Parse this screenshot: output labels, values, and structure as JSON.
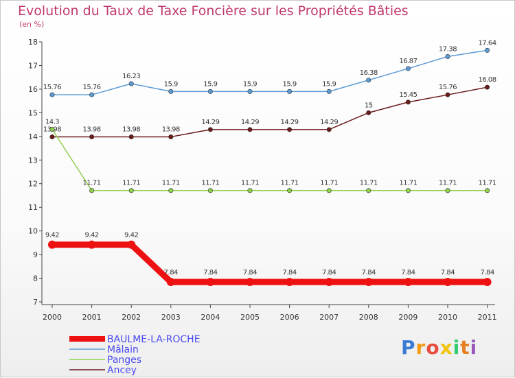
{
  "chart_data": {
    "type": "line",
    "title": "Evolution du Taux de Taxe Foncière sur les Propriétés Bâties",
    "ylabel": "(en %)",
    "xlabel": "",
    "ylim": [
      7,
      18
    ],
    "yticks": [
      7,
      8,
      9,
      10,
      11,
      12,
      13,
      14,
      15,
      16,
      17,
      18
    ],
    "categories": [
      "2000",
      "2001",
      "2002",
      "2003",
      "2004",
      "2005",
      "2006",
      "2007",
      "2008",
      "2009",
      "2010",
      "2011"
    ],
    "series": [
      {
        "name": "Mâlain",
        "color": "#5b9bd5",
        "emphasis": false,
        "values": [
          15.76,
          15.76,
          16.23,
          15.9,
          15.9,
          15.9,
          15.9,
          15.9,
          16.38,
          16.87,
          17.38,
          17.64
        ],
        "labels": [
          "15.76",
          "15.76",
          "16.23",
          "15.9",
          "15.9",
          "15.9",
          "15.9",
          "15.9",
          "16.38",
          "16.87",
          "17.38",
          "17.64"
        ]
      },
      {
        "name": "Ancey",
        "color": "#6b1a1a",
        "emphasis": false,
        "values": [
          13.98,
          13.98,
          13.98,
          13.98,
          14.29,
          14.29,
          14.29,
          14.29,
          15,
          15.45,
          15.76,
          16.08
        ],
        "labels": [
          "13.98",
          "13.98",
          "13.98",
          "13.98",
          "14.29",
          "14.29",
          "14.29",
          "14.29",
          "15",
          "15.45",
          "15.76",
          "16.08"
        ]
      },
      {
        "name": "Panges",
        "color": "#8fd14f",
        "emphasis": false,
        "values": [
          14.3,
          11.71,
          11.71,
          11.71,
          11.71,
          11.71,
          11.71,
          11.71,
          11.71,
          11.71,
          11.71,
          11.71
        ],
        "labels": [
          "14.3",
          "11.71",
          "11.71",
          "11.71",
          "11.71",
          "11.71",
          "11.71",
          "11.71",
          "11.71",
          "11.71",
          "11.71",
          "11.71"
        ]
      },
      {
        "name": "BAULME-LA-ROCHE",
        "color": "#ee1111",
        "emphasis": true,
        "values": [
          9.42,
          9.42,
          9.42,
          7.84,
          7.84,
          7.84,
          7.84,
          7.84,
          7.84,
          7.84,
          7.84,
          7.84
        ],
        "labels": [
          "9.42",
          "9.42",
          "9.42",
          "7.84",
          "7.84",
          "7.84",
          "7.84",
          "7.84",
          "7.84",
          "7.84",
          "7.84",
          "7.84"
        ]
      }
    ],
    "legend_order": [
      "BAULME-LA-ROCHE",
      "Mâlain",
      "Panges",
      "Ancey"
    ],
    "legend_position": "bottom-left",
    "grid": false
  },
  "logo": {
    "letters": [
      "P",
      "r",
      "o",
      "x",
      "i",
      "t",
      "i"
    ],
    "colors": [
      "#3a7bd5",
      "#f39c12",
      "#e74c3c",
      "#f1c40f",
      "#2ecc71",
      "#e67e22",
      "#9b59b6"
    ]
  }
}
